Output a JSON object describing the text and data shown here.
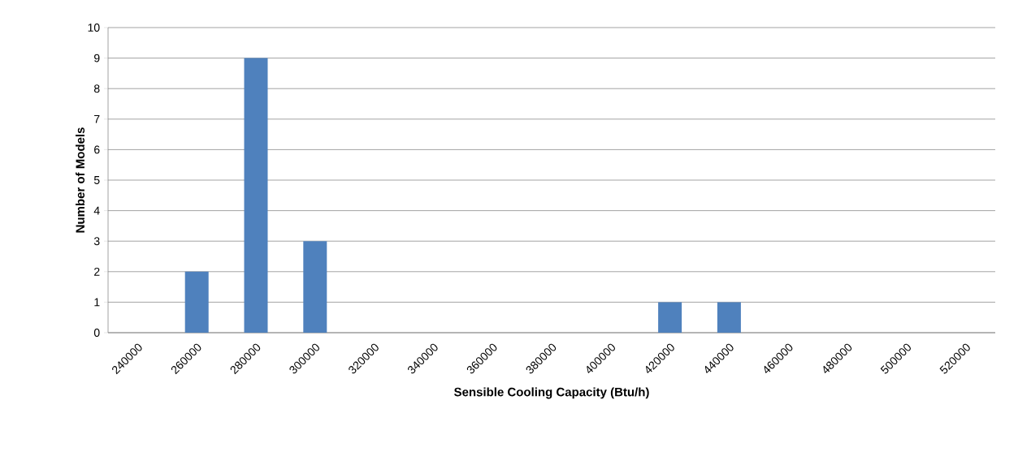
{
  "chart_data": {
    "type": "bar",
    "xlabel": "Sensible Cooling Capacity (Btu/h)",
    "ylabel": "Number of Models",
    "categories": [
      "240000",
      "260000",
      "280000",
      "300000",
      "320000",
      "340000",
      "360000",
      "380000",
      "400000",
      "420000",
      "440000",
      "460000",
      "480000",
      "500000",
      "520000"
    ],
    "values": [
      0,
      2,
      9,
      3,
      0,
      0,
      0,
      0,
      0,
      1,
      1,
      0,
      0,
      0,
      0
    ],
    "color": "#4f81bd",
    "ylim": [
      0,
      10
    ],
    "yticks": [
      0,
      1,
      2,
      3,
      4,
      5,
      6,
      7,
      8,
      9,
      10
    ],
    "grid": "y"
  }
}
